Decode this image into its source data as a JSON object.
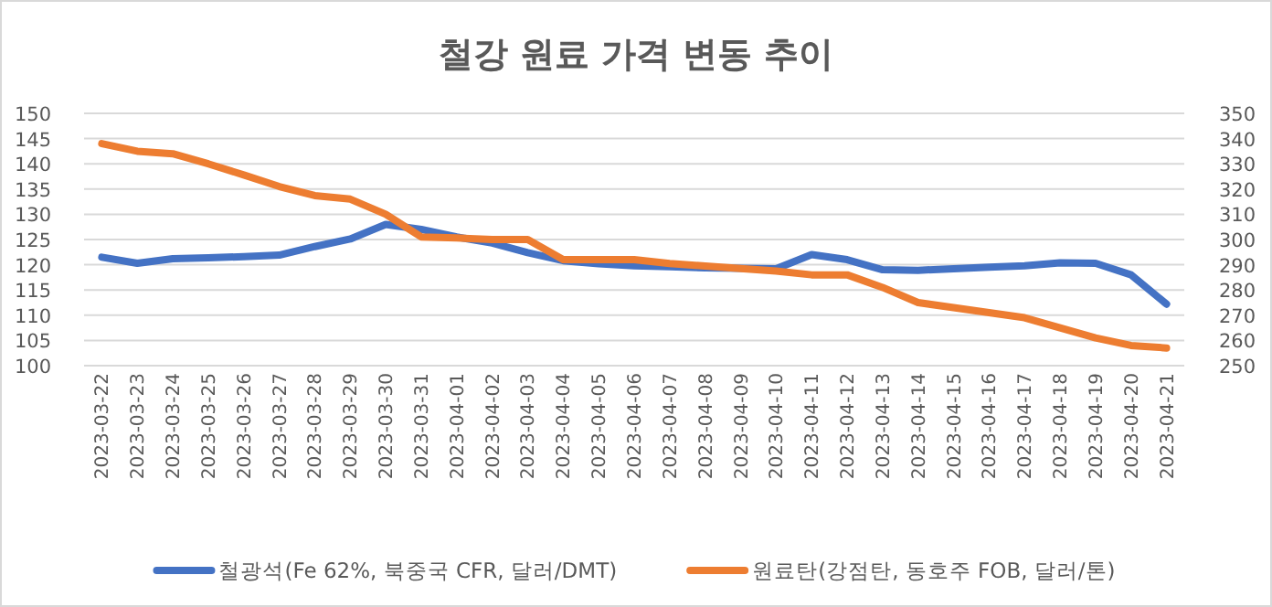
{
  "chart_data": {
    "type": "line",
    "title": "철강 원료 가격 변동 추이",
    "categories": [
      "2023-03-22",
      "2023-03-23",
      "2023-03-24",
      "2023-03-25",
      "2023-03-26",
      "2023-03-27",
      "2023-03-28",
      "2023-03-29",
      "2023-03-30",
      "2023-03-31",
      "2023-04-01",
      "2023-04-02",
      "2023-04-03",
      "2023-04-04",
      "2023-04-05",
      "2023-04-06",
      "2023-04-07",
      "2023-04-08",
      "2023-04-09",
      "2023-04-10",
      "2023-04-11",
      "2023-04-12",
      "2023-04-13",
      "2023-04-14",
      "2023-04-15",
      "2023-04-16",
      "2023-04-17",
      "2023-04-18",
      "2023-04-19",
      "2023-04-20",
      "2023-04-21"
    ],
    "series": [
      {
        "name": "철광석(Fe 62%, 북중국 CFR, 달러/DMT)",
        "color": "#4472c4",
        "values": [
          121.5,
          120.3,
          121.2,
          121.4,
          121.6,
          121.9,
          123.6,
          125.1,
          128,
          127,
          125.5,
          124.3,
          122.4,
          120.8,
          120.2,
          119.8,
          119.6,
          119.4,
          119.3,
          119.2,
          122,
          121,
          119,
          118.9,
          119.2,
          119.5,
          119.8,
          120.4,
          120.3,
          118,
          112.2
        ]
      },
      {
        "name": "원료탄(강점탄, 동호주 FOB, 달러/톤)",
        "color": "#ed7d31",
        "axis": "y2",
        "values": [
          338,
          335,
          334,
          330,
          325.6,
          321,
          317.4,
          316,
          310,
          301,
          300.6,
          300,
          300,
          292,
          292,
          292,
          290.5,
          289.5,
          288.5,
          287.5,
          286,
          286,
          281,
          275,
          273,
          271,
          269,
          265,
          261,
          258,
          257
        ]
      }
    ],
    "ylim": [
      100,
      150
    ],
    "yticks": [
      100,
      105,
      110,
      115,
      120,
      125,
      130,
      135,
      140,
      145,
      150
    ],
    "y2lim": [
      250,
      350
    ],
    "y2ticks": [
      250,
      260,
      270,
      280,
      290,
      300,
      310,
      320,
      330,
      340,
      350
    ],
    "grid": "y",
    "legend": "bottom"
  }
}
